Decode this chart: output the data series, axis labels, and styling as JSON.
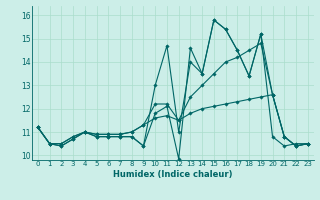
{
  "xlabel": "Humidex (Indice chaleur)",
  "background_color": "#cceee8",
  "grid_color": "#aaddcc",
  "line_color": "#006666",
  "xlim": [
    -0.5,
    23.5
  ],
  "ylim": [
    9.8,
    16.4
  ],
  "xticks": [
    0,
    1,
    2,
    3,
    4,
    5,
    6,
    7,
    8,
    9,
    10,
    11,
    12,
    13,
    14,
    15,
    16,
    17,
    18,
    19,
    20,
    21,
    22,
    23
  ],
  "yticks": [
    10,
    11,
    12,
    13,
    14,
    15,
    16
  ],
  "series": [
    [
      11.2,
      10.5,
      10.4,
      10.7,
      11.0,
      10.8,
      10.8,
      10.8,
      10.8,
      10.4,
      11.8,
      12.1,
      9.85,
      14.6,
      13.5,
      15.8,
      15.4,
      14.5,
      13.4,
      15.2,
      10.8,
      10.4,
      10.5,
      10.5
    ],
    [
      11.2,
      10.5,
      10.4,
      10.7,
      11.0,
      10.8,
      10.8,
      10.8,
      10.8,
      10.4,
      13.0,
      14.7,
      11.0,
      14.0,
      13.5,
      15.8,
      15.4,
      14.5,
      13.4,
      15.2,
      12.6,
      10.8,
      10.4,
      10.5
    ],
    [
      11.2,
      10.5,
      10.5,
      10.8,
      11.0,
      10.9,
      10.9,
      10.9,
      11.0,
      11.3,
      12.2,
      12.2,
      11.5,
      12.5,
      13.0,
      13.5,
      14.0,
      14.2,
      14.5,
      14.8,
      12.6,
      10.8,
      10.4,
      10.5
    ],
    [
      11.2,
      10.5,
      10.5,
      10.8,
      11.0,
      10.9,
      10.9,
      10.9,
      11.0,
      11.3,
      11.6,
      11.7,
      11.5,
      11.8,
      12.0,
      12.1,
      12.2,
      12.3,
      12.4,
      12.5,
      12.6,
      10.8,
      10.4,
      10.5
    ]
  ],
  "xtick_fontsize": 5,
  "ytick_fontsize": 5.5,
  "xlabel_fontsize": 6,
  "linewidth": 0.8,
  "markersize": 1.8
}
